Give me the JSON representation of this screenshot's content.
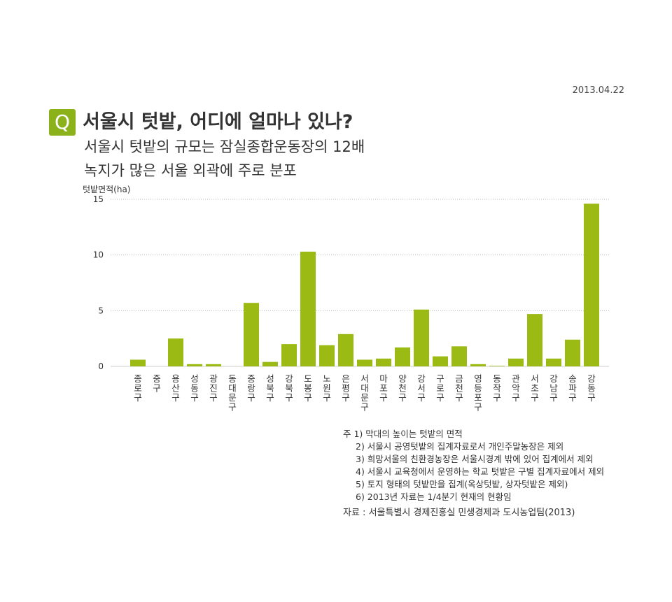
{
  "header": {
    "date": "2013.04.22",
    "badge": "Q",
    "title": "서울시 텃밭, 어디에 얼마나 있나?",
    "subtitle_line1": "서울시 텃밭의 규모는 잠실종합운동장의 12배",
    "subtitle_line2": "녹지가 많은 서울 외곽에 주로 분포"
  },
  "chart_data": {
    "type": "bar",
    "ylabel": "텃밭면적(ha)",
    "xlabel": "",
    "ylim": [
      0,
      15
    ],
    "yticks": [
      0,
      5,
      10,
      15
    ],
    "grid": true,
    "bar_color": "#9bbb14",
    "categories": [
      "종로구",
      "중구",
      "용산구",
      "성동구",
      "광진구",
      "동대문구",
      "중랑구",
      "성북구",
      "강북구",
      "도봉구",
      "노원구",
      "은평구",
      "서대문구",
      "마포구",
      "양천구",
      "강서구",
      "구로구",
      "금천구",
      "영등포구",
      "동작구",
      "관악구",
      "서초구",
      "강남구",
      "송파구",
      "강동구"
    ],
    "values": [
      0.6,
      0.0,
      2.5,
      0.2,
      0.2,
      0.0,
      5.7,
      0.4,
      2.0,
      10.3,
      1.9,
      2.9,
      0.6,
      0.7,
      1.7,
      5.1,
      0.9,
      1.8,
      0.2,
      0.05,
      0.7,
      4.7,
      0.7,
      2.4,
      14.6
    ]
  },
  "notes": {
    "line1": "주 1) 막대의 높이는 텃밭의 면적",
    "line2": "2) 서울시 공영텃밭의 집계자료로서 개인주말농장은 제외",
    "line3": "3) 희망서울의 친환경농장은 서울시경계 밖에 있어 집계에서 제외",
    "line4": "4) 서울시 교육청에서 운영하는 학교 텃밭은 구별 집계자료에서 제외",
    "line5": "5) 토지 형태의 텃밭만을 집계(옥상텃밭, 상자텃밭은 제외)",
    "line6": "6) 2013년 자료는 1/4분기 현재의 현황임"
  },
  "source": "자료 : 서울특별시 경제진흥실 민생경제과 도시농업팀(2013)"
}
